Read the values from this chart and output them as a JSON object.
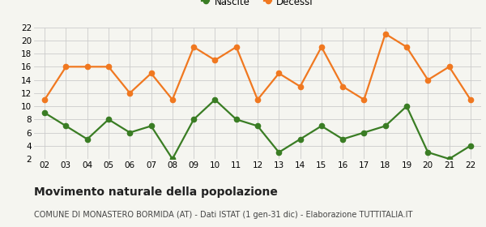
{
  "years": [
    "02",
    "03",
    "04",
    "05",
    "06",
    "07",
    "08",
    "09",
    "10",
    "11",
    "12",
    "13",
    "14",
    "15",
    "16",
    "17",
    "18",
    "19",
    "20",
    "21",
    "22"
  ],
  "nascite": [
    9,
    7,
    5,
    8,
    6,
    7,
    2,
    8,
    11,
    8,
    7,
    3,
    5,
    7,
    5,
    6,
    7,
    10,
    3,
    2,
    4
  ],
  "decessi": [
    11,
    16,
    16,
    16,
    12,
    15,
    11,
    19,
    17,
    19,
    11,
    15,
    13,
    19,
    13,
    11,
    21,
    19,
    14,
    16,
    11
  ],
  "nascite_color": "#3a7d24",
  "decessi_color": "#f07820",
  "marker_size": 4.5,
  "line_width": 1.6,
  "ylim": [
    2,
    22
  ],
  "yticks": [
    2,
    4,
    6,
    8,
    10,
    12,
    14,
    16,
    18,
    20,
    22
  ],
  "grid_color": "#cccccc",
  "bg_color": "#f5f5f0",
  "title": "Movimento naturale della popolazione",
  "subtitle": "COMUNE DI MONASTERO BORMIDA (AT) - Dati ISTAT (1 gen-31 dic) - Elaborazione TUTTITALIA.IT",
  "legend_nascite": "Nascite",
  "legend_decessi": "Decessi",
  "title_fontsize": 10,
  "subtitle_fontsize": 7.0,
  "legend_fontsize": 8.5,
  "tick_fontsize": 7.5
}
